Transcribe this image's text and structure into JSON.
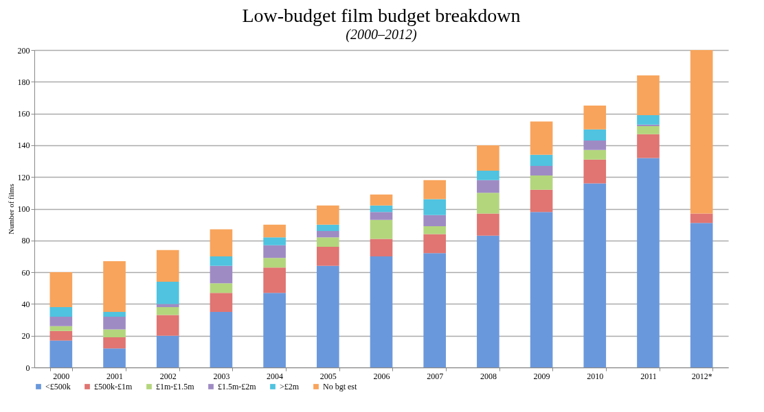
{
  "chart_data": {
    "type": "bar",
    "title": "Low-budget film budget breakdown",
    "subtitle": "(2000–2012)",
    "ylabel": "Number of films",
    "categories": [
      "2000",
      "2001",
      "2002",
      "2003",
      "2004",
      "2005",
      "2006",
      "2007",
      "2008",
      "2009",
      "2010",
      "2011",
      "2012*"
    ],
    "stacked": true,
    "ylim": [
      0,
      200
    ],
    "yticks": [
      0,
      20,
      40,
      60,
      80,
      100,
      120,
      140,
      160,
      180,
      200
    ],
    "grid": "y",
    "legend": "bottom",
    "series": [
      {
        "name": "<£500k",
        "color": "#6a98dc",
        "values": [
          17,
          12,
          20,
          35,
          47,
          64,
          70,
          72,
          83,
          98,
          116,
          132,
          91
        ]
      },
      {
        "name": "£500k-£1m",
        "color": "#e07572",
        "values": [
          6,
          7,
          13,
          12,
          16,
          12,
          11,
          12,
          14,
          14,
          15,
          15,
          6
        ]
      },
      {
        "name": "£1m-£1.5m",
        "color": "#b3d67c",
        "values": [
          3,
          5,
          5,
          6,
          6,
          6,
          12,
          5,
          13,
          9,
          6,
          5,
          0
        ]
      },
      {
        "name": "£1.5m-£2m",
        "color": "#9f8bc4",
        "values": [
          6,
          8,
          2,
          11,
          8,
          4,
          5,
          7,
          8,
          6,
          6,
          1,
          0
        ]
      },
      {
        "name": ">£2m",
        "color": "#4fc3e0",
        "values": [
          6,
          3,
          14,
          6,
          5,
          4,
          4,
          10,
          6,
          7,
          7,
          6,
          0
        ]
      },
      {
        "name": "No bgt est",
        "color": "#f8a45c",
        "values": [
          22,
          32,
          20,
          17,
          8,
          12,
          7,
          12,
          16,
          21,
          15,
          25,
          103
        ]
      }
    ]
  }
}
